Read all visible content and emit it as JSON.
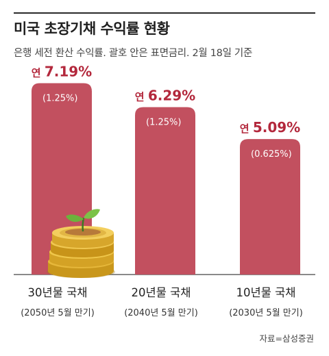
{
  "title": "미국 초장기채 수익률 현황",
  "subtitle": "은행 세전 환산 수익률. 괄호 안은 표면금리. 2월 18일 기준",
  "source": "자료=삼성증권",
  "chart_data": {
    "type": "bar",
    "categories": [
      "30년물 국채",
      "20년물 국채",
      "10년물 국채"
    ],
    "category_sublabels": [
      "(2050년 5월 만기)",
      "(2040년 5월 만기)",
      "(2030년 5월 만기)"
    ],
    "value_prefix": "연",
    "values": [
      7.19,
      6.29,
      5.09
    ],
    "value_labels": [
      "7.19%",
      "6.29%",
      "5.09%"
    ],
    "coupon_labels": [
      "(1.25%)",
      "(1.25%)",
      "(0.625%)"
    ],
    "ylim": [
      0,
      8
    ],
    "bar_color": "#c2505f",
    "value_color": "#b3283c",
    "grid": false,
    "title": "미국 초장기채 수익률 현황",
    "xlabel": "",
    "ylabel": ""
  }
}
